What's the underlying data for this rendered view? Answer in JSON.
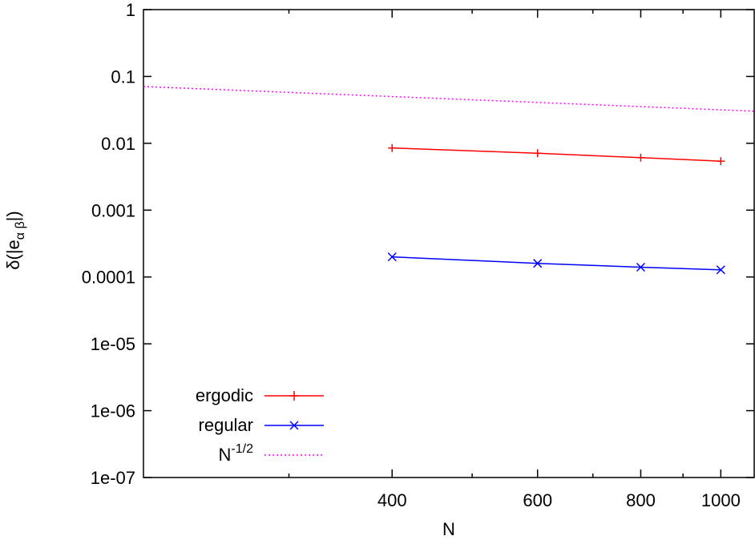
{
  "chart_data": {
    "type": "line",
    "xlabel": "N",
    "ylabel": {
      "prefix": "δ(|e",
      "subscript": "α β",
      "suffix": "|)"
    },
    "x_scale": "log",
    "y_scale": "log",
    "xlim": [
      200,
      1100
    ],
    "ylim": [
      1e-07,
      1
    ],
    "x_ticks": [
      400,
      600,
      800,
      1000
    ],
    "x_tick_labels": [
      "400",
      "600",
      "800",
      "1000"
    ],
    "x_minor_ticks": [
      300,
      500,
      700,
      900
    ],
    "y_ticks": [
      1e-07,
      1e-06,
      1e-05,
      0.0001,
      0.001,
      0.01,
      0.1,
      1
    ],
    "y_tick_labels": [
      "1e-07",
      "1e-06",
      "1e-05",
      "0.0001",
      "0.001",
      "0.01",
      "0.1",
      "1"
    ],
    "grid": false,
    "legend_position": "bottom-left",
    "series": [
      {
        "name": "ergodic",
        "color": "#ff0000",
        "marker": "plus",
        "line_style": "solid",
        "x": [
          400,
          600,
          800,
          1000
        ],
        "y": [
          0.0085,
          0.0071,
          0.0061,
          0.0054
        ]
      },
      {
        "name": "regular",
        "color": "#0000ff",
        "marker": "cross",
        "line_style": "solid",
        "x": [
          400,
          600,
          800,
          1000
        ],
        "y": [
          0.0002,
          0.00016,
          0.00014,
          0.000128
        ]
      },
      {
        "name_base": "N",
        "name_exponent": "-1/2",
        "color": "#ff00ff",
        "marker": "none",
        "line_style": "dotted",
        "function": "N^-1/2",
        "x": [
          200,
          1100
        ],
        "y": [
          0.0707,
          0.0302
        ]
      }
    ]
  }
}
